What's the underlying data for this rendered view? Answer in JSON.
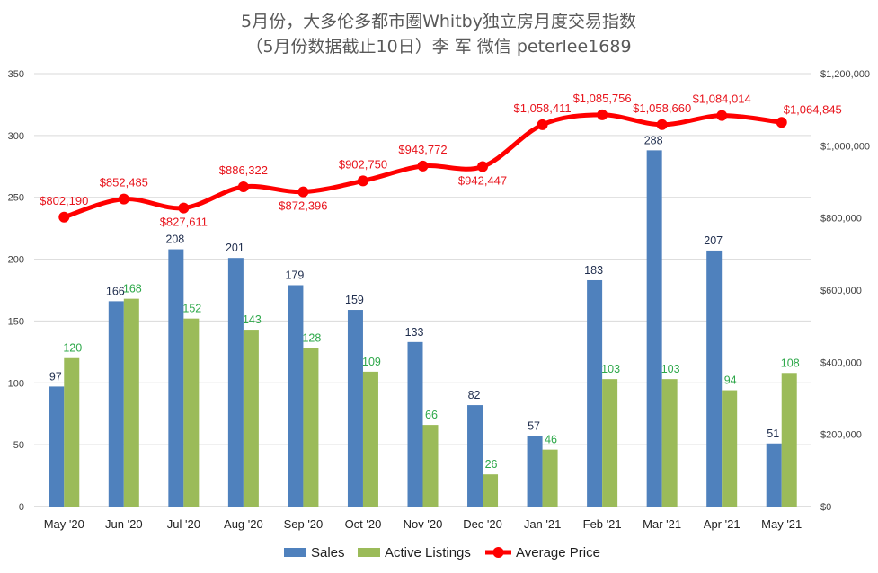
{
  "chart_data": {
    "type": "bar",
    "title": "5月份，大多伦多都市圈Whitby独立房月度交易指数",
    "subtitle": "（5月份数据截止10日）李 军 微信 peterlee1689",
    "categories": [
      "May '20",
      "Jun '20",
      "Jul '20",
      "Aug '20",
      "Sep '20",
      "Oct '20",
      "Nov '20",
      "Dec '20",
      "Jan '21",
      "Feb '21",
      "Mar '21",
      "Apr '21",
      "May '21"
    ],
    "series": [
      {
        "name": "Sales",
        "type": "bar",
        "axis": "left",
        "color": "#4f81bd",
        "label_color": "#1f2d4d",
        "values": [
          97,
          166,
          208,
          201,
          179,
          159,
          133,
          82,
          57,
          183,
          288,
          207,
          51
        ],
        "labels": [
          "97",
          "166",
          "208",
          "201",
          "179",
          "159",
          "133",
          "82",
          "57",
          "183",
          "288",
          "207",
          "51"
        ]
      },
      {
        "name": "Active Listings",
        "type": "bar",
        "axis": "left",
        "color": "#9bbb59",
        "label_color": "#2ea84a",
        "values": [
          120,
          168,
          152,
          143,
          128,
          109,
          66,
          26,
          46,
          103,
          103,
          94,
          108
        ],
        "labels": [
          "120",
          "168",
          "152",
          "143",
          "128",
          "109",
          "66",
          "26",
          "46",
          "103",
          "103",
          "94",
          "108"
        ]
      },
      {
        "name": "Average Price",
        "type": "line",
        "axis": "right",
        "color": "#ff0000",
        "label_color": "#e8141c",
        "values": [
          802190,
          852485,
          827611,
          886322,
          872396,
          902750,
          943772,
          942447,
          1058411,
          1085756,
          1058660,
          1084014,
          1064845
        ],
        "labels": [
          "$802,190",
          "$852,485",
          "$827,611",
          "$886,322",
          "$872,396",
          "$902,750",
          "$943,772",
          "$942,447",
          "$1,058,411",
          "$1,085,756",
          "$1,058,660",
          "$1,084,014",
          "$1,064,845"
        ],
        "label_pos": [
          "above",
          "above",
          "below",
          "above",
          "below",
          "above",
          "above",
          "below",
          "above",
          "above",
          "above",
          "above",
          "right"
        ]
      }
    ],
    "y_left": {
      "min": 0,
      "max": 350,
      "step": 50,
      "ticks": [
        "0",
        "50",
        "100",
        "150",
        "200",
        "250",
        "300",
        "350"
      ]
    },
    "y_right": {
      "min": 0,
      "max": 1200000,
      "step": 200000,
      "ticks": [
        "$0",
        "$200,000",
        "$400,000",
        "$600,000",
        "$800,000",
        "$1,000,000",
        "$1,200,000"
      ]
    },
    "grid": true,
    "legend_position": "bottom"
  }
}
